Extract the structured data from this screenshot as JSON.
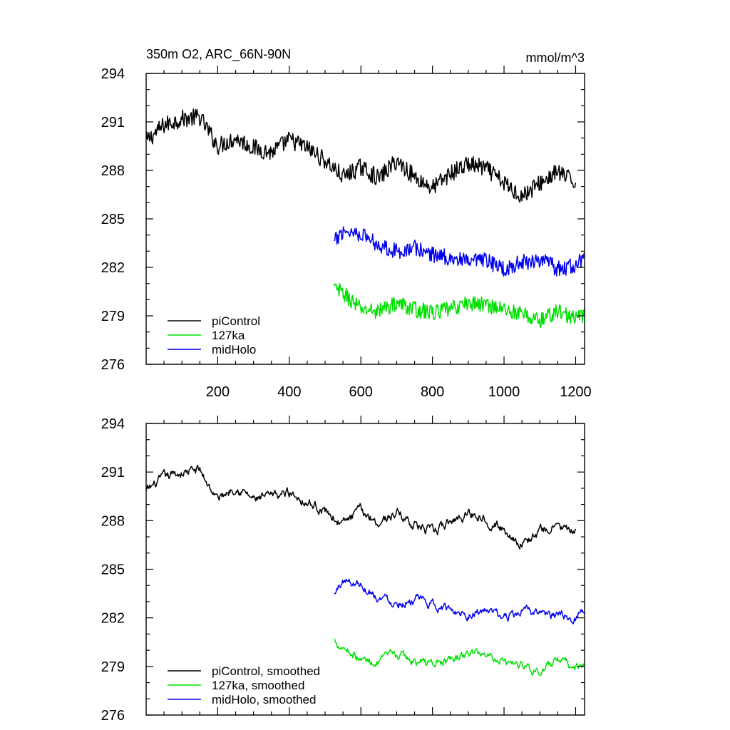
{
  "chart_data": [
    {
      "type": "line",
      "title": "350m O2, ARC_66N-90N",
      "units": "mmol/m^3",
      "xlim": [
        0,
        1225
      ],
      "ylim": [
        276,
        294
      ],
      "xticks": [
        200,
        400,
        600,
        800,
        1000,
        1200
      ],
      "xtick_labels": [
        "200",
        "400",
        "600",
        "800",
        "1000",
        "1200"
      ],
      "yticks": [
        276,
        279,
        282,
        285,
        288,
        291,
        294
      ],
      "ytick_labels": [
        "276",
        "279",
        "282",
        "285",
        "288",
        "291",
        "294"
      ],
      "legend_position": "bottom-left",
      "series": [
        {
          "name": "piControl",
          "color": "#000000",
          "x": [
            0,
            50,
            100,
            150,
            200,
            250,
            300,
            350,
            400,
            450,
            500,
            550,
            600,
            650,
            700,
            750,
            800,
            850,
            900,
            950,
            1000,
            1050,
            1100,
            1150,
            1200
          ],
          "y": [
            289.8,
            290.8,
            291.2,
            291.3,
            289.5,
            290.0,
            289.4,
            289.1,
            289.9,
            289.4,
            288.6,
            287.6,
            288.2,
            287.5,
            288.6,
            287.6,
            286.9,
            287.8,
            288.4,
            288.1,
            287.2,
            286.4,
            287.2,
            287.9,
            287.2
          ],
          "noise": 0.55
        },
        {
          "name": "127ka",
          "color": "#00e000",
          "x": [
            525,
            550,
            600,
            650,
            700,
            750,
            800,
            850,
            900,
            950,
            1000,
            1050,
            1100,
            1150,
            1200,
            1225
          ],
          "y": [
            280.7,
            280.4,
            279.4,
            279.3,
            279.8,
            279.4,
            279.2,
            279.4,
            279.8,
            279.7,
            279.4,
            279.1,
            278.7,
            279.3,
            278.8,
            279.1
          ],
          "noise": 0.5
        },
        {
          "name": "midHolo",
          "color": "#0000ee",
          "x": [
            525,
            550,
            600,
            650,
            700,
            750,
            800,
            850,
            900,
            950,
            1000,
            1050,
            1100,
            1150,
            1200,
            1225
          ],
          "y": [
            283.5,
            284.3,
            284.1,
            283.4,
            283.0,
            283.2,
            282.8,
            282.6,
            282.3,
            282.4,
            281.9,
            282.3,
            282.5,
            281.9,
            282.1,
            282.6
          ],
          "noise": 0.5
        }
      ]
    },
    {
      "type": "line",
      "xlim": [
        0,
        1225
      ],
      "ylim": [
        276,
        294
      ],
      "xticks": [
        200,
        400,
        600,
        800,
        1000,
        1200
      ],
      "yticks": [
        276,
        279,
        282,
        285,
        288,
        291,
        294
      ],
      "ytick_labels": [
        "276",
        "279",
        "282",
        "285",
        "288",
        "291",
        "294"
      ],
      "legend_position": "bottom-left",
      "series": [
        {
          "name": "piControl, smoothed",
          "color": "#000000",
          "x": [
            0,
            50,
            100,
            150,
            200,
            250,
            300,
            350,
            400,
            450,
            500,
            550,
            600,
            650,
            700,
            750,
            800,
            850,
            900,
            950,
            1000,
            1050,
            1100,
            1150,
            1200
          ],
          "y": [
            289.8,
            290.6,
            291.0,
            291.1,
            289.3,
            290.2,
            289.3,
            289.4,
            289.8,
            289.2,
            288.6,
            287.8,
            288.6,
            287.9,
            288.5,
            287.8,
            287.2,
            287.9,
            288.5,
            288.2,
            287.4,
            286.6,
            287.3,
            287.7,
            287.1
          ],
          "noise": 0.22
        },
        {
          "name": "127ka, smoothed",
          "color": "#00e000",
          "x": [
            525,
            550,
            600,
            650,
            700,
            750,
            800,
            850,
            900,
            950,
            1000,
            1050,
            1100,
            1150,
            1200,
            1225
          ],
          "y": [
            280.6,
            280.3,
            279.4,
            279.3,
            279.7,
            279.3,
            279.2,
            279.3,
            279.8,
            279.8,
            279.4,
            279.1,
            278.7,
            279.3,
            278.9,
            279.0
          ],
          "noise": 0.2
        },
        {
          "name": "midHolo, smoothed",
          "color": "#0000ee",
          "x": [
            525,
            550,
            600,
            650,
            700,
            750,
            800,
            850,
            900,
            950,
            1000,
            1050,
            1100,
            1150,
            1200,
            1225
          ],
          "y": [
            283.4,
            284.3,
            284.1,
            283.3,
            283.0,
            283.1,
            282.8,
            282.5,
            282.3,
            282.4,
            282.0,
            282.3,
            282.4,
            282.0,
            282.1,
            282.6
          ],
          "noise": 0.2
        }
      ]
    }
  ]
}
